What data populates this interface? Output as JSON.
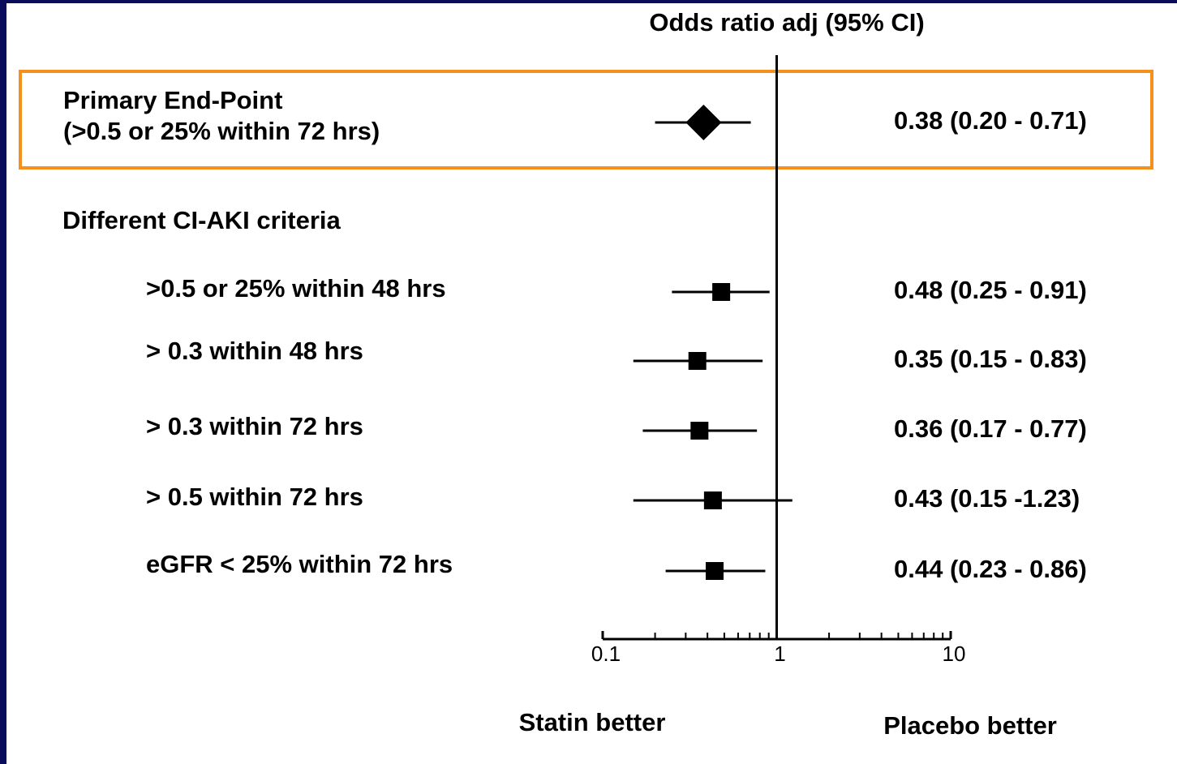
{
  "chart_data": {
    "type": "forest",
    "title": "Odds ratio adj (95% CI)",
    "categories": [
      [
        "Primary End-Point",
        "(>0.5 or 25% within 72 hrs)"
      ],
      ">0.5 or 25% within 48 hrs",
      "> 0.3 within 48 hrs",
      "> 0.3 within 72 hrs",
      "> 0.5 within 72 hrs",
      "eGFR < 25% within 72 hrs"
    ],
    "group_label": "Different CI-AKI criteria",
    "values": [
      0.38,
      0.48,
      0.35,
      0.36,
      0.43,
      0.44
    ],
    "lower": [
      0.2,
      0.25,
      0.15,
      0.17,
      0.15,
      0.23
    ],
    "upper": [
      0.71,
      0.91,
      0.83,
      0.77,
      1.23,
      0.86
    ],
    "value_labels": [
      "0.38 (0.20 - 0.71)",
      "0.48 (0.25 - 0.91)",
      "0.35 (0.15 - 0.83)",
      "0.36 (0.17 - 0.77)",
      "0.43 (0.15 -1.23)",
      "0.44 (0.23 - 0.86)"
    ],
    "markers": [
      "diamond",
      "square",
      "square",
      "square",
      "square",
      "square"
    ],
    "color": "#000000",
    "highlight": {
      "index": 0,
      "color": "#f5901e"
    },
    "xscale": "log",
    "xlim": [
      0.1,
      10
    ],
    "xticks": [
      0.1,
      1,
      10
    ],
    "xminorticks": [
      0.2,
      0.3,
      0.4,
      0.5,
      0.6,
      0.7,
      0.8,
      0.9,
      2,
      3,
      4,
      5,
      6,
      7,
      8,
      9
    ],
    "reference_line": 1,
    "annotations": [
      "Statin better",
      "Placebo better"
    ]
  }
}
